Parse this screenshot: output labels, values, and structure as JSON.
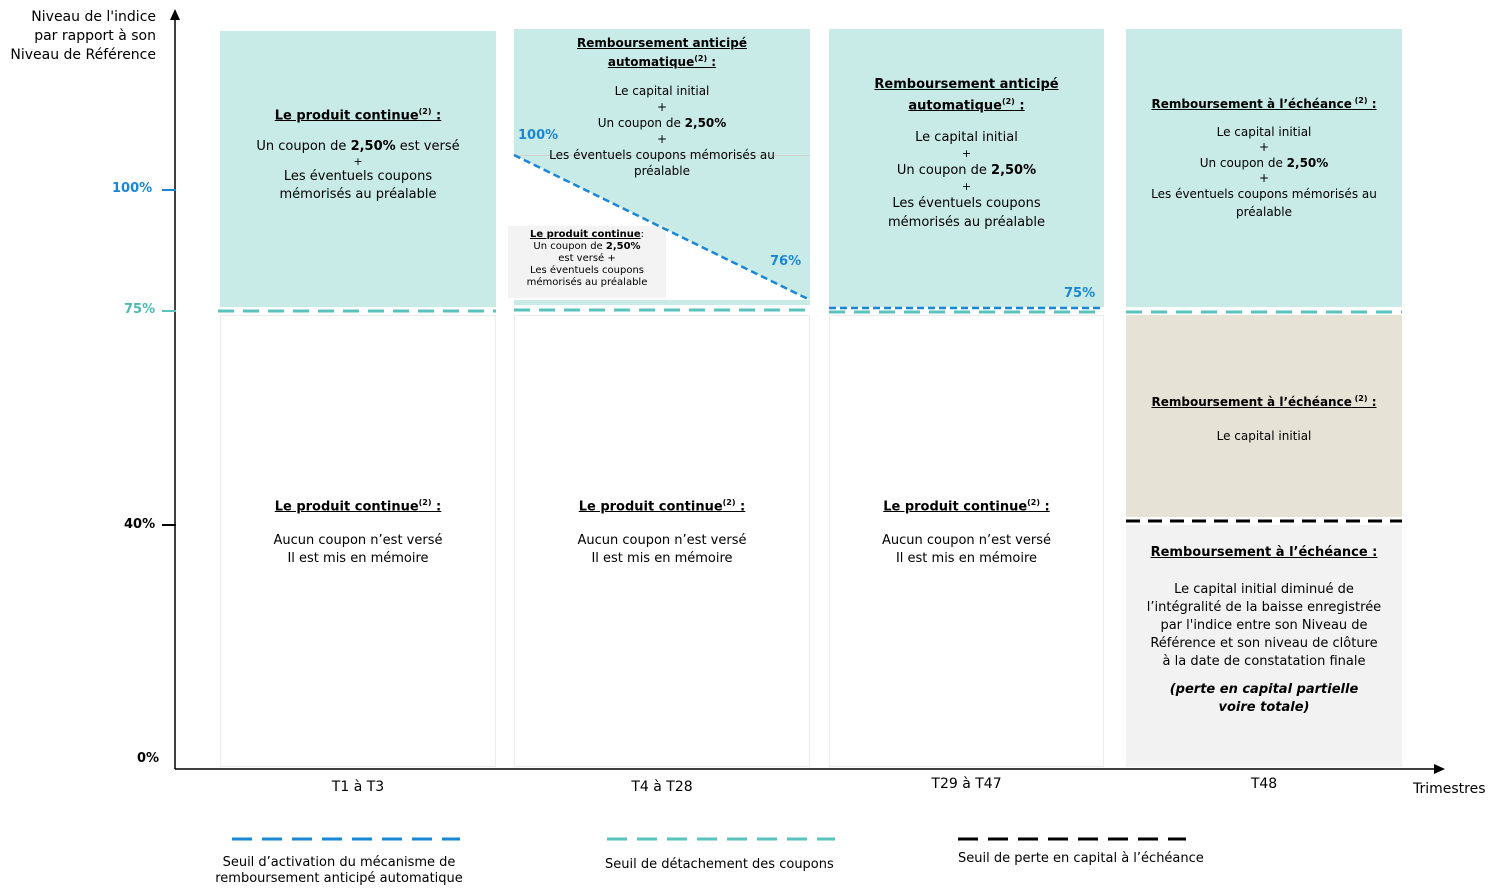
{
  "axis": {
    "ylabel": "Niveau de l'indice par rapport à son Niveau de Référence",
    "xlabel": "Trimestres",
    "yticks": [
      "100%",
      "75%",
      "40%",
      "0%"
    ],
    "periods": [
      "T1 à T3",
      "T4 à T28",
      "T29 à T47",
      "T48"
    ]
  },
  "colors": {
    "teal_zone": "#c9ebe8",
    "beige_zone": "#e6e2d6",
    "grey_zone": "#f2f2f2",
    "blue_threshold": "#1a87d6",
    "teal_threshold": "#5bc3be",
    "black_threshold": "#000000"
  },
  "labels": {
    "continue": "Le produit continue",
    "sup": "(2)",
    "colon": " :",
    "coupon_prefix": "Un coupon de ",
    "coupon_rate": "2,50%",
    "coupon_suffix": " est versé",
    "plus": "+",
    "eventuels": "Les éventuels coupons mémorisés au préalable",
    "no_coupon": "Aucun coupon n’est versé",
    "memo": "Il est mis en mémoire",
    "early": "Remboursement anticipé automatique",
    "capital": "Le capital initial",
    "coupon_short": "Un coupon de ",
    "maturity": "Remboursement à l’échéance",
    "maturity_sup": " (2)",
    "maturity_plain": "Remboursement à l’échéance :",
    "loss_text": "Le capital initial diminué de l’intégralité de la baisse enregistrée par l'indice entre son Niveau de Référence et son niveau de clôture à la date de constatation finale",
    "loss_note": "(perte en capital partielle voire totale)",
    "small_continue": "Le produit continue",
    "small_colon": ":",
    "small_coupon": "Un coupon de ",
    "small_rate": "2,50%",
    "small_verse": "est versé +",
    "small_eventuels": "Les éventuels coupons mémorisés au préalable",
    "pct_100": "100%",
    "pct_76": "76%",
    "pct_75": "75%"
  },
  "legend": {
    "blue": "Seuil d’activation du mécanisme de remboursement anticipé automatique",
    "teal": "Seuil de détachement des coupons",
    "black": "Seuil de perte en capital à l’échéance"
  }
}
